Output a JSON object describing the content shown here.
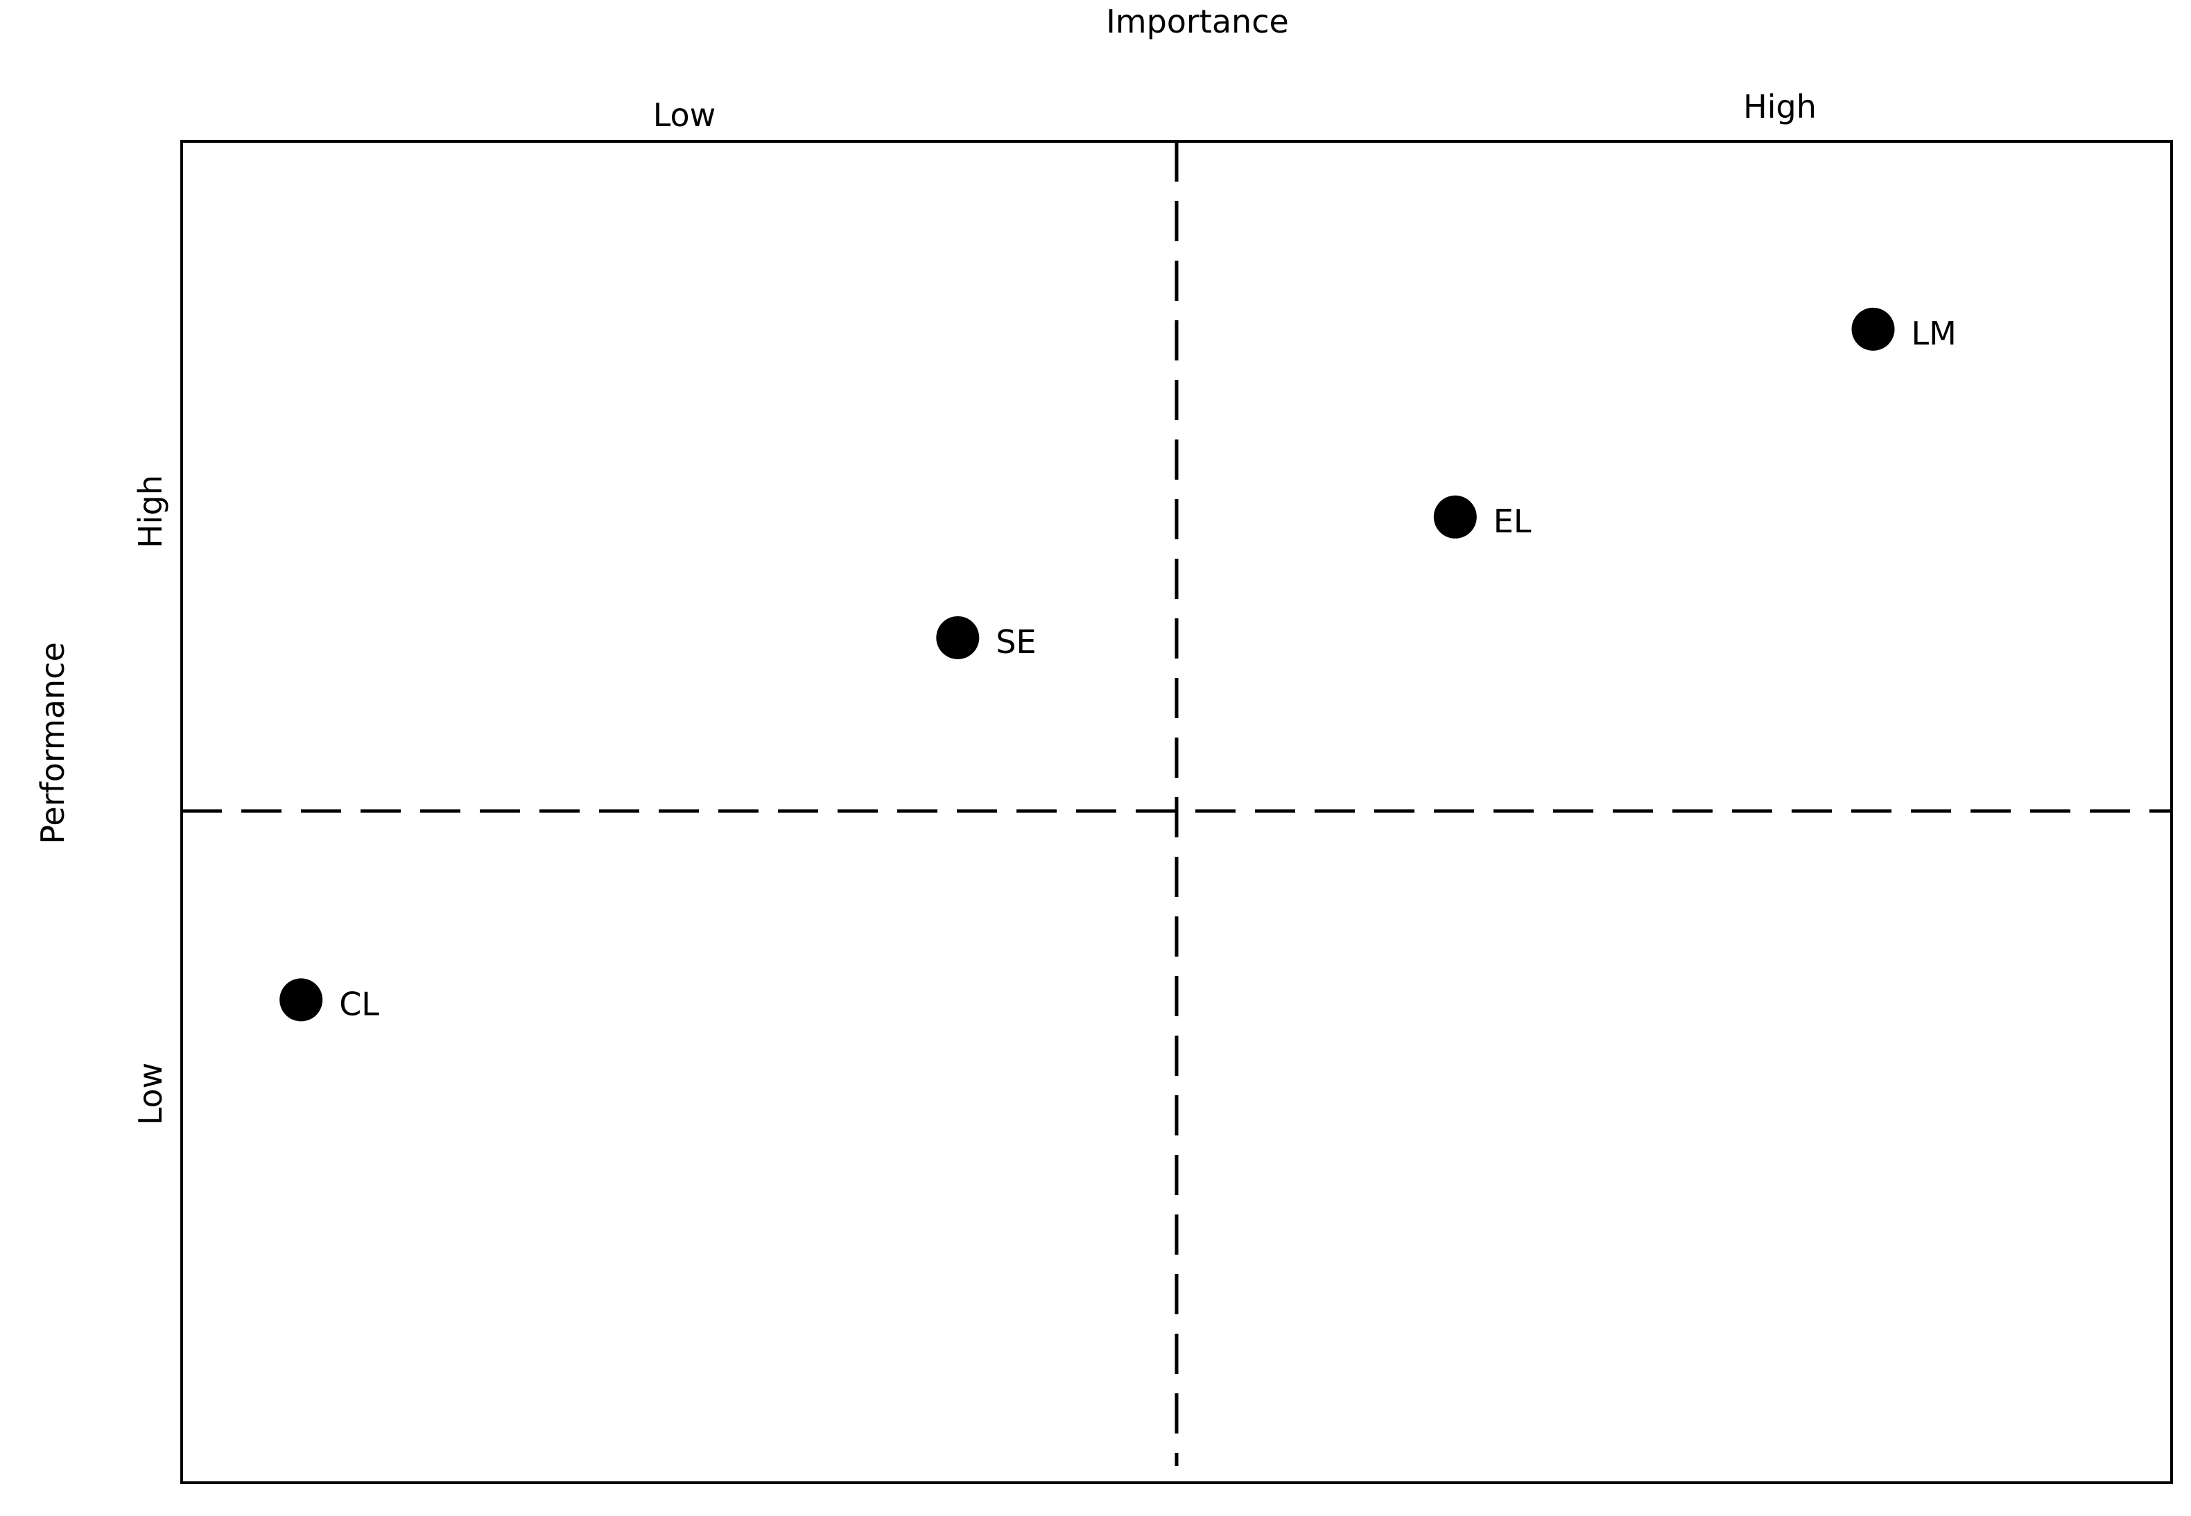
{
  "chart_data": {
    "type": "scatter",
    "title": "",
    "xlabel": "Importance",
    "ylabel": "Performance",
    "x_ticks": [
      "Low",
      "High"
    ],
    "y_ticks": [
      "High",
      "Low"
    ],
    "grid": false,
    "quadrant_dividers": "dashed",
    "points": [
      {
        "label": "LM",
        "x_level": 0.85,
        "y_level": 0.86
      },
      {
        "label": "EL",
        "x_level": 0.64,
        "y_level": 0.72
      },
      {
        "label": "SE",
        "x_level": 0.39,
        "y_level": 0.63
      },
      {
        "label": "CL",
        "x_level": 0.06,
        "y_level": 0.36
      }
    ],
    "point_color": "#000000"
  }
}
